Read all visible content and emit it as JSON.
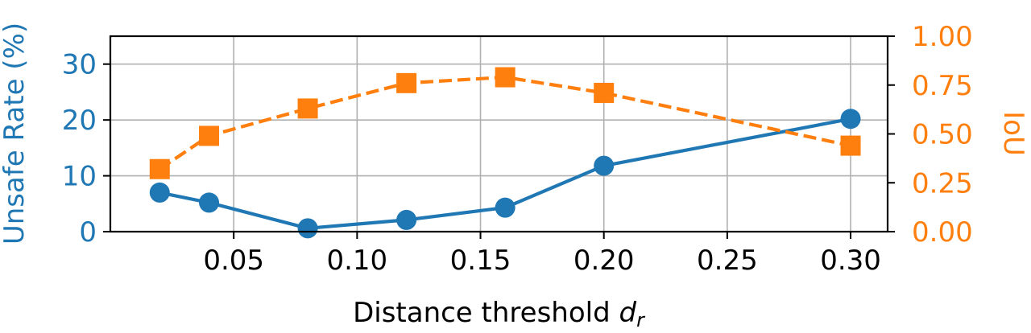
{
  "chart_data": {
    "type": "line",
    "xlabel_main": "Distance threshold ",
    "xlabel_var": "d",
    "xlabel_sub": "r",
    "x": [
      0.02,
      0.04,
      0.08,
      0.12,
      0.16,
      0.2,
      0.3
    ],
    "xlim": [
      0.0,
      0.315
    ],
    "xticks": [
      0.05,
      0.1,
      0.15,
      0.2,
      0.25,
      0.3
    ],
    "xtick_labels": [
      "0.05",
      "0.10",
      "0.15",
      "0.20",
      "0.25",
      "0.30"
    ],
    "grid": true,
    "y_left": {
      "label": "Unsafe Rate (%)",
      "lim": [
        0,
        35
      ],
      "ticks": [
        0,
        10,
        20,
        30
      ],
      "tick_labels": [
        "0",
        "10",
        "20",
        "30"
      ],
      "color": "#1f77b4"
    },
    "y_right": {
      "label": "IoU",
      "lim": [
        0.0,
        1.0
      ],
      "ticks": [
        0.0,
        0.25,
        0.5,
        0.75,
        1.0
      ],
      "tick_labels": [
        "0.00",
        "0.25",
        "0.50",
        "0.75",
        "1.00"
      ],
      "color": "#ff7f0e"
    },
    "series": [
      {
        "axis": "left",
        "marker": "circle",
        "linestyle": "solid",
        "color": "#1f77b4",
        "values": [
          7.0,
          5.2,
          0.6,
          2.1,
          4.3,
          11.8,
          20.2
        ]
      },
      {
        "axis": "right",
        "marker": "square",
        "linestyle": "dashed",
        "color": "#ff7f0e",
        "values": [
          0.32,
          0.49,
          0.63,
          0.76,
          0.79,
          0.71,
          0.44
        ]
      }
    ]
  }
}
